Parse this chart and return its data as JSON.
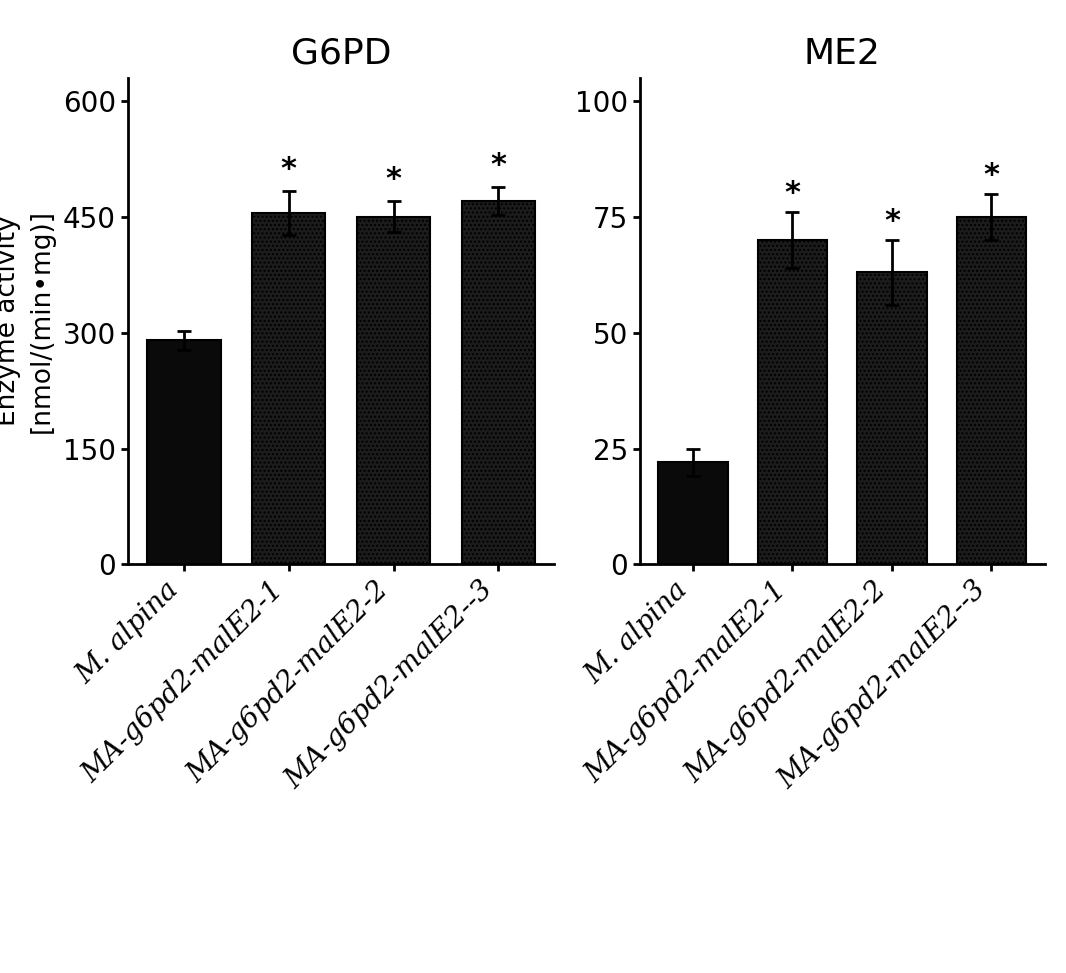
{
  "left_title": "G6PD",
  "right_title": "ME2",
  "ylabel": "Enzyme activity\n[nmol/(min•mg)]",
  "categories": [
    "M. alpina",
    "MA-g6pd2-malE2-1",
    "MA-g6pd2-malE2-2",
    "MA-g6pd2-malE2--3"
  ],
  "g6pd_values": [
    290,
    455,
    450,
    470
  ],
  "g6pd_errors": [
    12,
    28,
    20,
    18
  ],
  "me2_values": [
    22,
    70,
    63,
    75
  ],
  "me2_errors": [
    3,
    6,
    7,
    5
  ],
  "g6pd_ylim": [
    0,
    630
  ],
  "g6pd_yticks": [
    0,
    150,
    300,
    450,
    600
  ],
  "me2_ylim": [
    0,
    105
  ],
  "me2_yticks": [
    0,
    25,
    50,
    75,
    100
  ],
  "bar_color_solid": "#111111",
  "significance_indices": [
    1,
    2,
    3
  ],
  "bar_width": 0.7,
  "fontsize_title": 26,
  "fontsize_ticks": 20,
  "fontsize_ylabel": 19,
  "fontsize_star": 22,
  "tick_rotation": 45
}
